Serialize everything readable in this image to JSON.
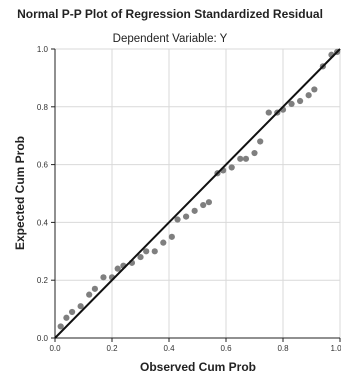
{
  "chart_data": {
    "type": "scatter",
    "title": "Normal P-P Plot of Regression Standardized Residual",
    "subtitle": "Dependent Variable: Y",
    "xlabel": "Observed Cum Prob",
    "ylabel": "Expected Cum Prob",
    "xlim": [
      0,
      1
    ],
    "ylim": [
      0,
      1
    ],
    "xticks": [
      "0.0",
      "0.2",
      "0.4",
      "0.6",
      "0.8",
      "1.0"
    ],
    "yticks": [
      "0.0",
      "0.2",
      "0.4",
      "0.6",
      "0.8",
      "1.0"
    ],
    "grid": true,
    "reference_line": {
      "from": [
        0,
        0
      ],
      "to": [
        1,
        1
      ]
    },
    "colors": {
      "points": "#7f7f7f",
      "line": "#111111",
      "grid": "#d9d9d9",
      "axis": "#222222"
    },
    "points": [
      {
        "x": 0.02,
        "y": 0.04
      },
      {
        "x": 0.04,
        "y": 0.07
      },
      {
        "x": 0.06,
        "y": 0.09
      },
      {
        "x": 0.09,
        "y": 0.11
      },
      {
        "x": 0.12,
        "y": 0.15
      },
      {
        "x": 0.14,
        "y": 0.17
      },
      {
        "x": 0.17,
        "y": 0.21
      },
      {
        "x": 0.2,
        "y": 0.21
      },
      {
        "x": 0.22,
        "y": 0.24
      },
      {
        "x": 0.24,
        "y": 0.25
      },
      {
        "x": 0.27,
        "y": 0.26
      },
      {
        "x": 0.3,
        "y": 0.28
      },
      {
        "x": 0.32,
        "y": 0.3
      },
      {
        "x": 0.35,
        "y": 0.3
      },
      {
        "x": 0.38,
        "y": 0.33
      },
      {
        "x": 0.41,
        "y": 0.35
      },
      {
        "x": 0.43,
        "y": 0.41
      },
      {
        "x": 0.46,
        "y": 0.42
      },
      {
        "x": 0.49,
        "y": 0.44
      },
      {
        "x": 0.52,
        "y": 0.46
      },
      {
        "x": 0.54,
        "y": 0.47
      },
      {
        "x": 0.57,
        "y": 0.57
      },
      {
        "x": 0.59,
        "y": 0.58
      },
      {
        "x": 0.62,
        "y": 0.59
      },
      {
        "x": 0.65,
        "y": 0.62
      },
      {
        "x": 0.67,
        "y": 0.62
      },
      {
        "x": 0.7,
        "y": 0.64
      },
      {
        "x": 0.72,
        "y": 0.68
      },
      {
        "x": 0.75,
        "y": 0.78
      },
      {
        "x": 0.78,
        "y": 0.78
      },
      {
        "x": 0.8,
        "y": 0.79
      },
      {
        "x": 0.83,
        "y": 0.81
      },
      {
        "x": 0.86,
        "y": 0.82
      },
      {
        "x": 0.89,
        "y": 0.84
      },
      {
        "x": 0.91,
        "y": 0.86
      },
      {
        "x": 0.94,
        "y": 0.94
      },
      {
        "x": 0.97,
        "y": 0.98
      },
      {
        "x": 0.99,
        "y": 0.99
      }
    ]
  }
}
